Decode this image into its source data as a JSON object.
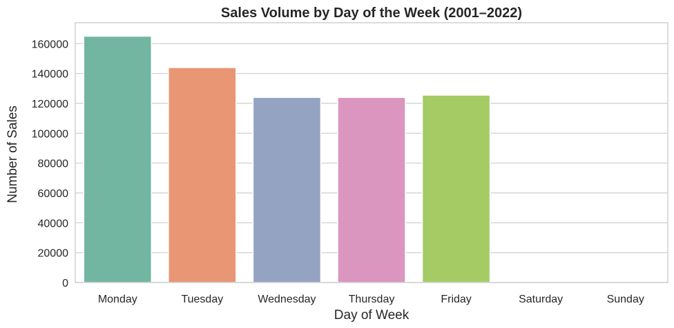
{
  "chart_data": {
    "type": "bar",
    "title": "Sales Volume by Day of the Week (2001–2022)",
    "xlabel": "Day of Week",
    "ylabel": "Number of Sales",
    "categories": [
      "Monday",
      "Tuesday",
      "Wednesday",
      "Thursday",
      "Friday",
      "Saturday",
      "Sunday"
    ],
    "values": [
      165000,
      144000,
      124000,
      124000,
      125500,
      0,
      0
    ],
    "colors": [
      "#72b6a1",
      "#e99675",
      "#95a3c3",
      "#db96c0",
      "#a4cb64",
      "#e4cb5f",
      "#d5bb94"
    ],
    "ylim": [
      0,
      174000
    ],
    "yticks": [
      0,
      20000,
      40000,
      60000,
      80000,
      100000,
      120000,
      140000,
      160000
    ],
    "grid": "y"
  }
}
